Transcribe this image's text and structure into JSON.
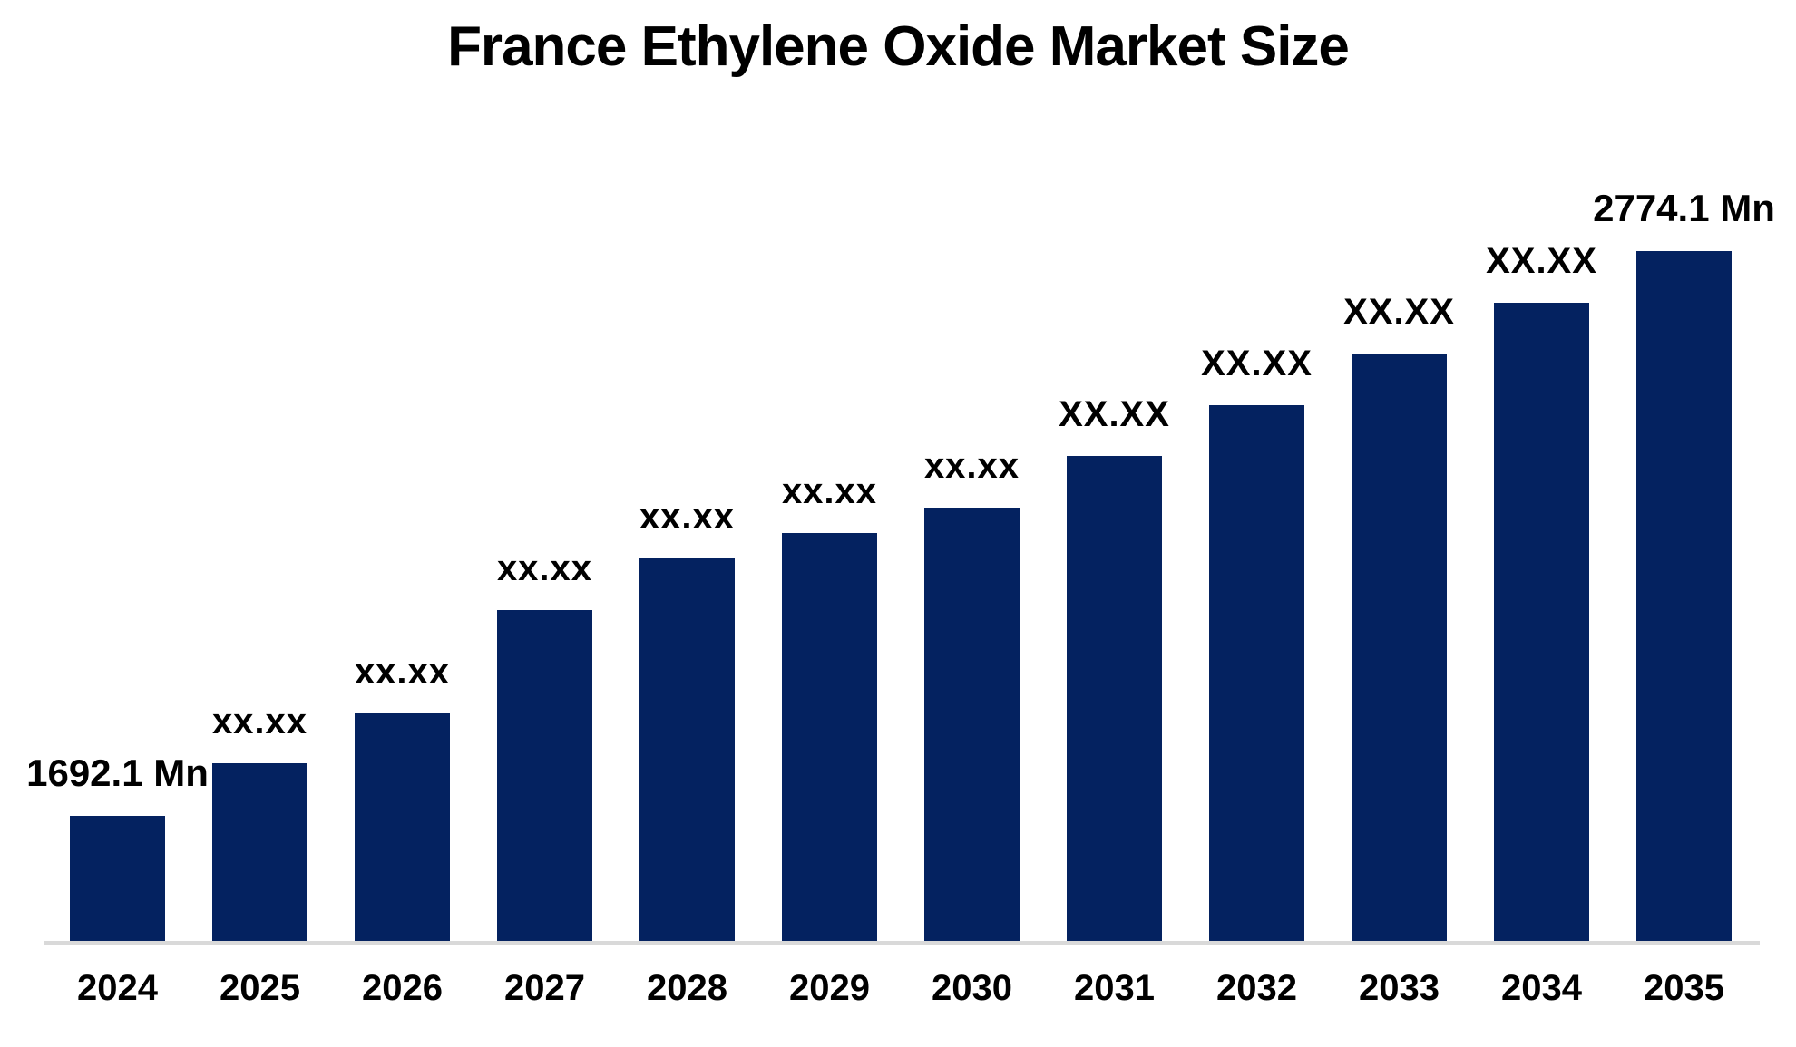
{
  "title": "France Ethylene Oxide Market Size",
  "chart_data": {
    "type": "bar",
    "title": "France Ethylene Oxide Market Size",
    "categories": [
      "2024",
      "2025",
      "2026",
      "2027",
      "2028",
      "2029",
      "2030",
      "2031",
      "2032",
      "2033",
      "2034",
      "2035"
    ],
    "values": [
      1692.1,
      1792.8,
      1888.4,
      2086.4,
      2185.4,
      2234.0,
      2282.6,
      2381.6,
      2478.9,
      2577.9,
      2675.2,
      2774.1
    ],
    "value_labels": [
      "1692.1 Mn",
      "xx.xx",
      "xx.xx",
      "xx.xx",
      "xx.xx",
      "xx.xx",
      "xx.xx",
      "XX.XX",
      "XX.XX",
      "XX.XX",
      "XX.XX",
      "2774.1 Mn"
    ],
    "unit": "Mn",
    "series_name": "France Ethylene Oxide Market Size",
    "bar_color": "#042260",
    "axis_line_color": "#d9d9d9",
    "label_color": "#000000",
    "y_axis": "hidden",
    "x_axis_labels_shown": true,
    "grid": false,
    "legend": "none",
    "first_bar_value_shown": "1692.1 Mn",
    "last_bar_value_shown": "2774.1 Mn"
  }
}
